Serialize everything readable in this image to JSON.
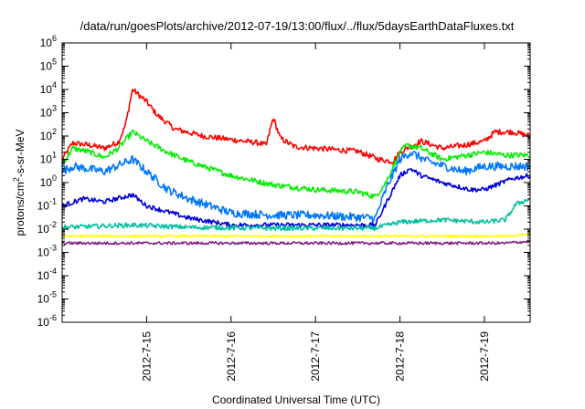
{
  "chart_data": {
    "type": "line",
    "title": "/data/run/goesPlots/archive/2012-07-19/13:00/flux/../flux/5daysEarthDataFluxes.txt",
    "xlabel": "Coordinated Universal Time (UTC)",
    "ylabel": {
      "base": "protons/cm",
      "sup": "2",
      "rest": "-s-sr-MeV"
    },
    "log_y": true,
    "grid": false,
    "legend": "none",
    "xlim": [
      "2012-07-14 00:00",
      "2012-07-19 13:00"
    ],
    "ylim": [
      1e-06,
      1000000.0
    ],
    "x_ticks": [
      {
        "date": "2012-07-15",
        "label": "2012-7-15"
      },
      {
        "date": "2012-07-16",
        "label": "2012-7-16"
      },
      {
        "date": "2012-07-17",
        "label": "2012-7-17"
      },
      {
        "date": "2012-07-18",
        "label": "2012-7-18"
      },
      {
        "date": "2012-07-19",
        "label": "2012-7-19"
      }
    ],
    "y_ticks": [
      {
        "value": 1e-06,
        "base": "10",
        "exp": "-6"
      },
      {
        "value": 1e-05,
        "base": "10",
        "exp": "-5"
      },
      {
        "value": 0.0001,
        "base": "10",
        "exp": "-4"
      },
      {
        "value": 0.001,
        "base": "10",
        "exp": "-3"
      },
      {
        "value": 0.01,
        "base": "10",
        "exp": "-2"
      },
      {
        "value": 0.1,
        "base": "10",
        "exp": "-1"
      },
      {
        "value": 1,
        "base": "10",
        "exp": "0"
      },
      {
        "value": 10,
        "base": "10",
        "exp": "1"
      },
      {
        "value": 100,
        "base": "10",
        "exp": "2"
      },
      {
        "value": 1000,
        "base": "10",
        "exp": "3"
      },
      {
        "value": 10000,
        "base": "10",
        "exp": "4"
      },
      {
        "value": 100000,
        "base": "10",
        "exp": "5"
      },
      {
        "value": 1000000,
        "base": "10",
        "exp": "6"
      }
    ],
    "series": [
      {
        "color": "#ff0000",
        "noise": 0.12,
        "points": [
          [
            "2012-07-14 00:00",
            10
          ],
          [
            "2012-07-14 03:00",
            50
          ],
          [
            "2012-07-14 08:00",
            40
          ],
          [
            "2012-07-14 12:00",
            30
          ],
          [
            "2012-07-14 16:00",
            55
          ],
          [
            "2012-07-14 18:00",
            300
          ],
          [
            "2012-07-14 20:00",
            10000
          ],
          [
            "2012-07-15 00:00",
            3000
          ],
          [
            "2012-07-15 03:00",
            800
          ],
          [
            "2012-07-15 08:00",
            200
          ],
          [
            "2012-07-15 16:00",
            100
          ],
          [
            "2012-07-16 00:00",
            70
          ],
          [
            "2012-07-16 08:00",
            50
          ],
          [
            "2012-07-16 10:00",
            40
          ],
          [
            "2012-07-16 12:00",
            600
          ],
          [
            "2012-07-16 14:00",
            80
          ],
          [
            "2012-07-16 18:00",
            35
          ],
          [
            "2012-07-17 00:00",
            30
          ],
          [
            "2012-07-17 12:00",
            22
          ],
          [
            "2012-07-17 18:00",
            10
          ],
          [
            "2012-07-17 22:00",
            8
          ],
          [
            "2012-07-18 00:00",
            20
          ],
          [
            "2012-07-18 02:00",
            30
          ],
          [
            "2012-07-18 06:00",
            60
          ],
          [
            "2012-07-18 12:00",
            30
          ],
          [
            "2012-07-18 18:00",
            40
          ],
          [
            "2012-07-19 00:00",
            60
          ],
          [
            "2012-07-19 03:00",
            150
          ],
          [
            "2012-07-19 08:00",
            150
          ],
          [
            "2012-07-19 13:00",
            100
          ]
        ]
      },
      {
        "color": "#00ee00",
        "noise": 0.12,
        "points": [
          [
            "2012-07-14 00:00",
            6
          ],
          [
            "2012-07-14 03:00",
            30
          ],
          [
            "2012-07-14 08:00",
            20
          ],
          [
            "2012-07-14 12:00",
            12
          ],
          [
            "2012-07-14 16:00",
            30
          ],
          [
            "2012-07-14 20:00",
            150
          ],
          [
            "2012-07-15 00:00",
            60
          ],
          [
            "2012-07-15 06:00",
            20
          ],
          [
            "2012-07-15 12:00",
            8
          ],
          [
            "2012-07-16 00:00",
            2
          ],
          [
            "2012-07-16 12:00",
            0.8
          ],
          [
            "2012-07-17 00:00",
            0.5
          ],
          [
            "2012-07-17 12:00",
            0.4
          ],
          [
            "2012-07-17 17:00",
            0.25
          ],
          [
            "2012-07-17 20:00",
            1
          ],
          [
            "2012-07-18 00:00",
            20
          ],
          [
            "2012-07-18 02:00",
            40
          ],
          [
            "2012-07-18 06:00",
            30
          ],
          [
            "2012-07-18 12:00",
            10
          ],
          [
            "2012-07-19 00:00",
            20
          ],
          [
            "2012-07-19 06:00",
            15
          ],
          [
            "2012-07-19 13:00",
            15
          ]
        ]
      },
      {
        "color": "#0077ff",
        "noise": 0.18,
        "points": [
          [
            "2012-07-14 00:00",
            3
          ],
          [
            "2012-07-14 03:00",
            5
          ],
          [
            "2012-07-14 12:00",
            3
          ],
          [
            "2012-07-14 20:00",
            10
          ],
          [
            "2012-07-15 00:00",
            3
          ],
          [
            "2012-07-15 06:00",
            0.5
          ],
          [
            "2012-07-15 12:00",
            0.2
          ],
          [
            "2012-07-16 00:00",
            0.05
          ],
          [
            "2012-07-16 12:00",
            0.04
          ],
          [
            "2012-07-17 00:00",
            0.04
          ],
          [
            "2012-07-17 17:00",
            0.03
          ],
          [
            "2012-07-17 20:00",
            0.5
          ],
          [
            "2012-07-18 00:00",
            10
          ],
          [
            "2012-07-18 03:00",
            20
          ],
          [
            "2012-07-18 08:00",
            8
          ],
          [
            "2012-07-18 18:00",
            3
          ],
          [
            "2012-07-19 00:00",
            5
          ],
          [
            "2012-07-19 13:00",
            5
          ]
        ]
      },
      {
        "color": "#0000dd",
        "noise": 0.1,
        "points": [
          [
            "2012-07-14 00:00",
            0.1
          ],
          [
            "2012-07-14 06:00",
            0.2
          ],
          [
            "2012-07-14 12:00",
            0.15
          ],
          [
            "2012-07-14 20:00",
            0.3
          ],
          [
            "2012-07-15 00:00",
            0.1
          ],
          [
            "2012-07-15 12:00",
            0.03
          ],
          [
            "2012-07-16 00:00",
            0.015
          ],
          [
            "2012-07-17 00:00",
            0.015
          ],
          [
            "2012-07-17 17:00",
            0.015
          ],
          [
            "2012-07-17 22:00",
            0.5
          ],
          [
            "2012-07-18 00:00",
            2
          ],
          [
            "2012-07-18 03:00",
            4
          ],
          [
            "2012-07-18 06:00",
            2
          ],
          [
            "2012-07-18 12:00",
            1
          ],
          [
            "2012-07-18 20:00",
            0.5
          ],
          [
            "2012-07-19 00:00",
            0.5
          ],
          [
            "2012-07-19 08:00",
            1.5
          ],
          [
            "2012-07-19 13:00",
            2
          ]
        ]
      },
      {
        "color": "#00c0a0",
        "noise": 0.1,
        "points": [
          [
            "2012-07-14 00:00",
            0.012
          ],
          [
            "2012-07-14 20:00",
            0.015
          ],
          [
            "2012-07-15 12:00",
            0.012
          ],
          [
            "2012-07-16 12:00",
            0.011
          ],
          [
            "2012-07-17 17:00",
            0.011
          ],
          [
            "2012-07-18 00:00",
            0.02
          ],
          [
            "2012-07-18 12:00",
            0.025
          ],
          [
            "2012-07-19 00:00",
            0.02
          ],
          [
            "2012-07-19 06:00",
            0.025
          ],
          [
            "2012-07-19 09:00",
            0.12
          ],
          [
            "2012-07-19 13:00",
            0.2
          ]
        ]
      },
      {
        "color": "#ffff00",
        "noise": 0.05,
        "points": [
          [
            "2012-07-14 00:00",
            0.005
          ],
          [
            "2012-07-19 06:00",
            0.005
          ],
          [
            "2012-07-19 13:00",
            0.006
          ]
        ]
      },
      {
        "color": "#882288",
        "noise": 0.06,
        "points": [
          [
            "2012-07-14 00:00",
            0.0025
          ],
          [
            "2012-07-19 06:00",
            0.0025
          ],
          [
            "2012-07-19 13:00",
            0.003
          ]
        ]
      }
    ]
  }
}
